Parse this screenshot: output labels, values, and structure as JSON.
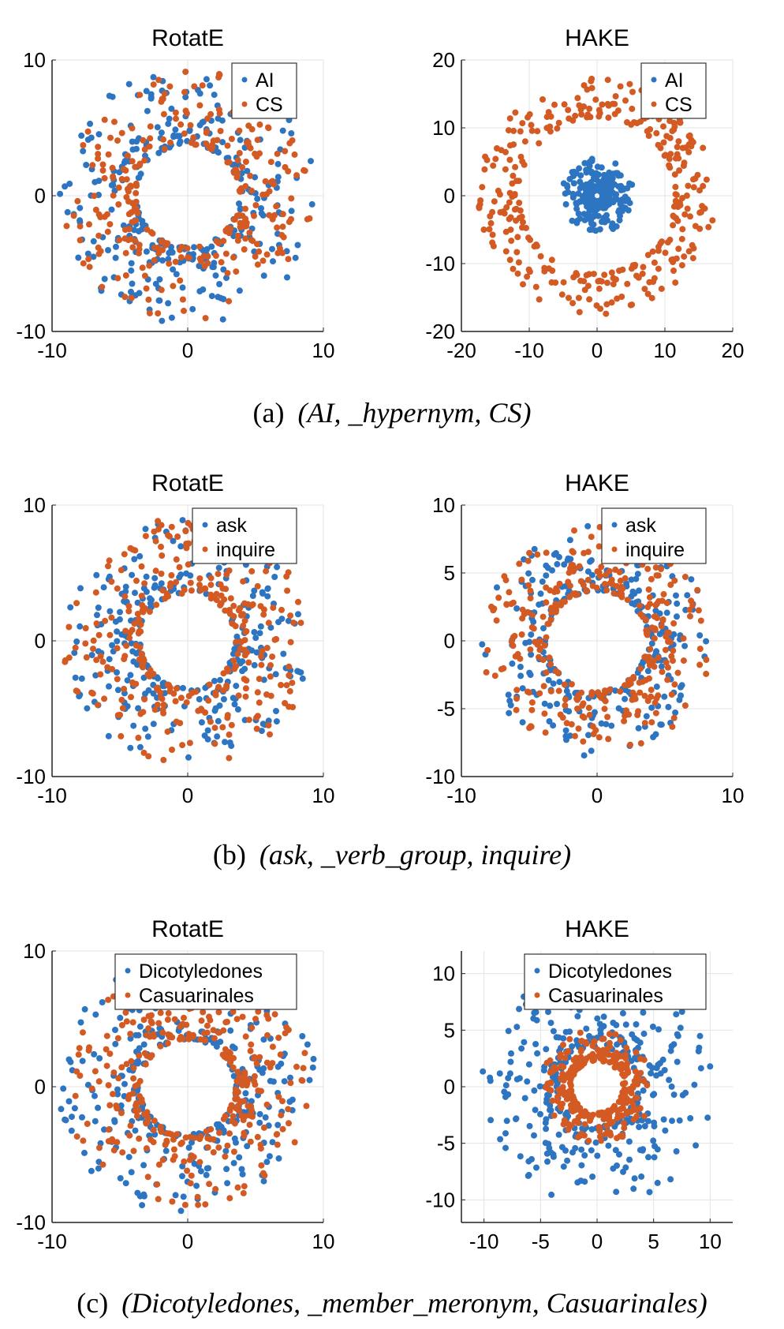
{
  "colors": {
    "series_a": "#2E75C1",
    "series_b": "#D35A23",
    "grid": "#e3e3e3",
    "axis": "#222222"
  },
  "captions": [
    {
      "prefix": "(a)",
      "triple": "(AI, _hypernym, CS)"
    },
    {
      "prefix": "(b)",
      "triple": "(ask, _verb_group, inquire)"
    },
    {
      "prefix": "(c)",
      "triple": "(Dicotyledones, _member_meronym, Casuarinales)"
    }
  ],
  "chart_data": [
    {
      "type": "scatter",
      "title": "RotatE",
      "xlabel": "",
      "ylabel": "",
      "xlim": [
        -10,
        10
      ],
      "ylim": [
        -10,
        10
      ],
      "xticks": [
        -10,
        0,
        10
      ],
      "yticks": [
        -10,
        0,
        10
      ],
      "grid": true,
      "legend": "top-right",
      "series": [
        {
          "name": "AI",
          "ring": {
            "r_min": 3.8,
            "r_max": 9.5,
            "n": 300,
            "center": [
              0,
              0
            ]
          }
        },
        {
          "name": "CS",
          "ring": {
            "r_min": 3.8,
            "r_max": 9.5,
            "n": 300,
            "center": [
              0,
              0
            ]
          }
        }
      ]
    },
    {
      "type": "scatter",
      "title": "HAKE",
      "xlabel": "",
      "ylabel": "",
      "xlim": [
        -20,
        20
      ],
      "ylim": [
        -20,
        20
      ],
      "xticks": [
        -20,
        -10,
        0,
        10,
        20
      ],
      "yticks": [
        -20,
        -10,
        0,
        10,
        20
      ],
      "grid": true,
      "legend": "top-right",
      "series": [
        {
          "name": "AI",
          "ring": {
            "r_min": 0.8,
            "r_max": 5.5,
            "n": 300,
            "center": [
              0,
              0
            ]
          }
        },
        {
          "name": "CS",
          "ring": {
            "r_min": 11.5,
            "r_max": 17.5,
            "n": 320,
            "center": [
              0,
              0
            ]
          }
        }
      ]
    },
    {
      "type": "scatter",
      "title": "RotatE",
      "xlabel": "",
      "ylabel": "",
      "xlim": [
        -10,
        10
      ],
      "ylim": [
        -10,
        10
      ],
      "xticks": [
        -10,
        0,
        10
      ],
      "yticks": [
        -10,
        0,
        10
      ],
      "grid": true,
      "legend": "top-right",
      "series": [
        {
          "name": "ask",
          "ring": {
            "r_min": 3.5,
            "r_max": 9.2,
            "n": 280,
            "center": [
              0,
              0
            ]
          }
        },
        {
          "name": "inquire",
          "ring": {
            "r_min": 3.5,
            "r_max": 9.2,
            "n": 320,
            "center": [
              0,
              0
            ]
          }
        }
      ]
    },
    {
      "type": "scatter",
      "title": "HAKE",
      "xlabel": "",
      "ylabel": "",
      "xlim": [
        -10,
        10
      ],
      "ylim": [
        -10,
        10
      ],
      "xticks": [
        -10,
        0,
        10
      ],
      "yticks": [
        -10,
        -5,
        0,
        5,
        10
      ],
      "grid": true,
      "legend": "top-right",
      "series": [
        {
          "name": "ask",
          "ring": {
            "r_min": 3.7,
            "r_max": 8.5,
            "n": 280,
            "center": [
              0,
              0
            ]
          }
        },
        {
          "name": "inquire",
          "ring": {
            "r_min": 3.7,
            "r_max": 8.5,
            "n": 320,
            "center": [
              0,
              0
            ]
          }
        }
      ]
    },
    {
      "type": "scatter",
      "title": "RotatE",
      "xlabel": "",
      "ylabel": "",
      "xlim": [
        -10,
        10
      ],
      "ylim": [
        -10,
        10
      ],
      "xticks": [
        -10,
        0,
        10
      ],
      "yticks": [
        -10,
        0,
        10
      ],
      "grid": true,
      "legend": "top-right",
      "series": [
        {
          "name": "Dicotyledones",
          "ring": {
            "r_min": 3.5,
            "r_max": 9.5,
            "n": 300,
            "center": [
              0,
              0
            ]
          }
        },
        {
          "name": "Casuarinales",
          "ring": {
            "r_min": 3.5,
            "r_max": 9.0,
            "n": 340,
            "center": [
              0,
              0
            ]
          }
        }
      ]
    },
    {
      "type": "scatter",
      "title": "HAKE",
      "xlabel": "",
      "ylabel": "",
      "xlim": [
        -12,
        12
      ],
      "ylim": [
        -12,
        12
      ],
      "xticks": [
        -10,
        -5,
        0,
        5,
        10
      ],
      "yticks": [
        -10,
        -5,
        0,
        5,
        10
      ],
      "grid": true,
      "legend": "top-right",
      "series": [
        {
          "name": "Dicotyledones",
          "ring": {
            "r_min": 3.5,
            "r_max": 10.5,
            "n": 340,
            "center": [
              0,
              0
            ]
          }
        },
        {
          "name": "Casuarinales",
          "ring": {
            "r_min": 2.3,
            "r_max": 5.0,
            "n": 300,
            "center": [
              0,
              0
            ]
          }
        }
      ]
    }
  ]
}
